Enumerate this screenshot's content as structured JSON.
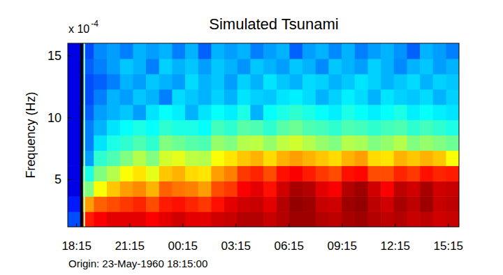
{
  "chart_data": {
    "type": "heatmap",
    "title": "Simulated Tsunami",
    "ylabel": "Frequency (Hz)",
    "y_scale_label": {
      "base": "x 10",
      "exponent": "-4"
    },
    "origin_label": "Origin: 23-May-1960 18:15:00",
    "xlim": [
      -0.5,
      21.6
    ],
    "ylim": [
      1.2,
      16
    ],
    "xticks": [
      {
        "value": 0,
        "label": "18:15"
      },
      {
        "value": 3,
        "label": "21:15"
      },
      {
        "value": 6,
        "label": "00:15"
      },
      {
        "value": 9,
        "label": "03:15"
      },
      {
        "value": 12,
        "label": "06:15"
      },
      {
        "value": 15,
        "label": "09:15"
      },
      {
        "value": 18,
        "label": "12:15"
      },
      {
        "value": 21,
        "label": "15:15"
      }
    ],
    "yticks": [
      5,
      10,
      15
    ],
    "event_line": {
      "x": 0.28
    },
    "zlim": [
      0,
      1
    ],
    "x": [
      -0.13,
      0.6,
      1.34,
      2.08,
      2.82,
      3.55,
      4.29,
      5.03,
      5.76,
      6.5,
      7.24,
      7.97,
      8.71,
      9.45,
      10.18,
      10.92,
      11.66,
      12.39,
      13.13,
      13.87,
      14.6,
      15.34,
      16.08,
      16.82,
      17.55,
      18.29,
      19.03,
      19.76,
      20.5,
      21.24
    ],
    "y": [
      1.82,
      3.05,
      4.28,
      5.52,
      6.75,
      7.98,
      9.22,
      10.45,
      11.68,
      12.92,
      14.15,
      15.38
    ],
    "z": [
      [
        0.2,
        0.85,
        0.88,
        0.9,
        0.9,
        0.9,
        0.88,
        0.9,
        0.92,
        0.9,
        0.9,
        0.92,
        0.93,
        0.95,
        0.95,
        0.93,
        0.95,
        0.97,
        0.97,
        0.95,
        0.94,
        0.96,
        0.97,
        0.95,
        0.94,
        0.95,
        0.93,
        0.94,
        0.92,
        0.93
      ],
      [
        0.15,
        0.72,
        0.78,
        0.8,
        0.82,
        0.84,
        0.8,
        0.85,
        0.86,
        0.84,
        0.82,
        0.86,
        0.9,
        0.92,
        0.93,
        0.9,
        0.95,
        0.98,
        0.97,
        0.93,
        0.92,
        0.97,
        0.98,
        0.94,
        0.92,
        0.96,
        0.94,
        0.97,
        0.93,
        0.94
      ],
      [
        0.1,
        0.5,
        0.62,
        0.68,
        0.72,
        0.74,
        0.7,
        0.78,
        0.76,
        0.75,
        0.72,
        0.8,
        0.82,
        0.88,
        0.9,
        0.86,
        0.92,
        0.96,
        0.95,
        0.9,
        0.88,
        0.95,
        0.97,
        0.92,
        0.88,
        0.94,
        0.92,
        0.96,
        0.92,
        0.93
      ],
      [
        0.1,
        0.4,
        0.5,
        0.55,
        0.62,
        0.65,
        0.6,
        0.68,
        0.7,
        0.66,
        0.65,
        0.72,
        0.75,
        0.82,
        0.84,
        0.8,
        0.86,
        0.88,
        0.85,
        0.82,
        0.8,
        0.86,
        0.87,
        0.8,
        0.8,
        0.84,
        0.82,
        0.86,
        0.84,
        0.85
      ],
      [
        0.1,
        0.28,
        0.42,
        0.45,
        0.5,
        0.55,
        0.5,
        0.58,
        0.6,
        0.56,
        0.55,
        0.62,
        0.65,
        0.68,
        0.7,
        0.66,
        0.7,
        0.72,
        0.7,
        0.68,
        0.66,
        0.7,
        0.72,
        0.66,
        0.65,
        0.7,
        0.68,
        0.7,
        0.68,
        0.62
      ],
      [
        0.1,
        0.25,
        0.35,
        0.4,
        0.42,
        0.45,
        0.42,
        0.5,
        0.48,
        0.46,
        0.45,
        0.52,
        0.5,
        0.55,
        0.56,
        0.52,
        0.56,
        0.58,
        0.55,
        0.52,
        0.5,
        0.55,
        0.54,
        0.5,
        0.52,
        0.55,
        0.5,
        0.52,
        0.5,
        0.48
      ],
      [
        0.1,
        0.25,
        0.3,
        0.35,
        0.38,
        0.4,
        0.38,
        0.42,
        0.4,
        0.4,
        0.38,
        0.44,
        0.42,
        0.46,
        0.45,
        0.42,
        0.46,
        0.48,
        0.45,
        0.44,
        0.42,
        0.45,
        0.44,
        0.42,
        0.44,
        0.45,
        0.42,
        0.44,
        0.42,
        0.4
      ],
      [
        0.1,
        0.22,
        0.28,
        0.3,
        0.32,
        0.28,
        0.35,
        0.38,
        0.36,
        0.3,
        0.35,
        0.38,
        0.36,
        0.4,
        0.3,
        0.38,
        0.4,
        0.42,
        0.4,
        0.38,
        0.36,
        0.4,
        0.38,
        0.36,
        0.38,
        0.4,
        0.36,
        0.38,
        0.36,
        0.35
      ],
      [
        0.1,
        0.2,
        0.25,
        0.3,
        0.28,
        0.32,
        0.3,
        0.25,
        0.34,
        0.32,
        0.3,
        0.33,
        0.3,
        0.35,
        0.33,
        0.32,
        0.35,
        0.36,
        0.34,
        0.3,
        0.33,
        0.36,
        0.34,
        0.3,
        0.35,
        0.33,
        0.32,
        0.34,
        0.3,
        0.33
      ],
      [
        0.1,
        0.2,
        0.22,
        0.25,
        0.3,
        0.28,
        0.32,
        0.3,
        0.28,
        0.34,
        0.3,
        0.32,
        0.28,
        0.33,
        0.3,
        0.35,
        0.32,
        0.3,
        0.34,
        0.33,
        0.3,
        0.32,
        0.35,
        0.33,
        0.3,
        0.32,
        0.34,
        0.3,
        0.33,
        0.32
      ],
      [
        0.1,
        0.22,
        0.25,
        0.28,
        0.32,
        0.3,
        0.25,
        0.33,
        0.3,
        0.32,
        0.28,
        0.32,
        0.3,
        0.27,
        0.32,
        0.3,
        0.28,
        0.32,
        0.3,
        0.26,
        0.32,
        0.3,
        0.28,
        0.33,
        0.3,
        0.26,
        0.3,
        0.32,
        0.28,
        0.3
      ],
      [
        0.1,
        0.2,
        0.26,
        0.28,
        0.25,
        0.3,
        0.28,
        0.3,
        0.25,
        0.3,
        0.22,
        0.3,
        0.28,
        0.3,
        0.25,
        0.28,
        0.3,
        0.22,
        0.28,
        0.3,
        0.26,
        0.3,
        0.25,
        0.28,
        0.3,
        0.27,
        0.22,
        0.3,
        0.28,
        0.25
      ]
    ]
  }
}
